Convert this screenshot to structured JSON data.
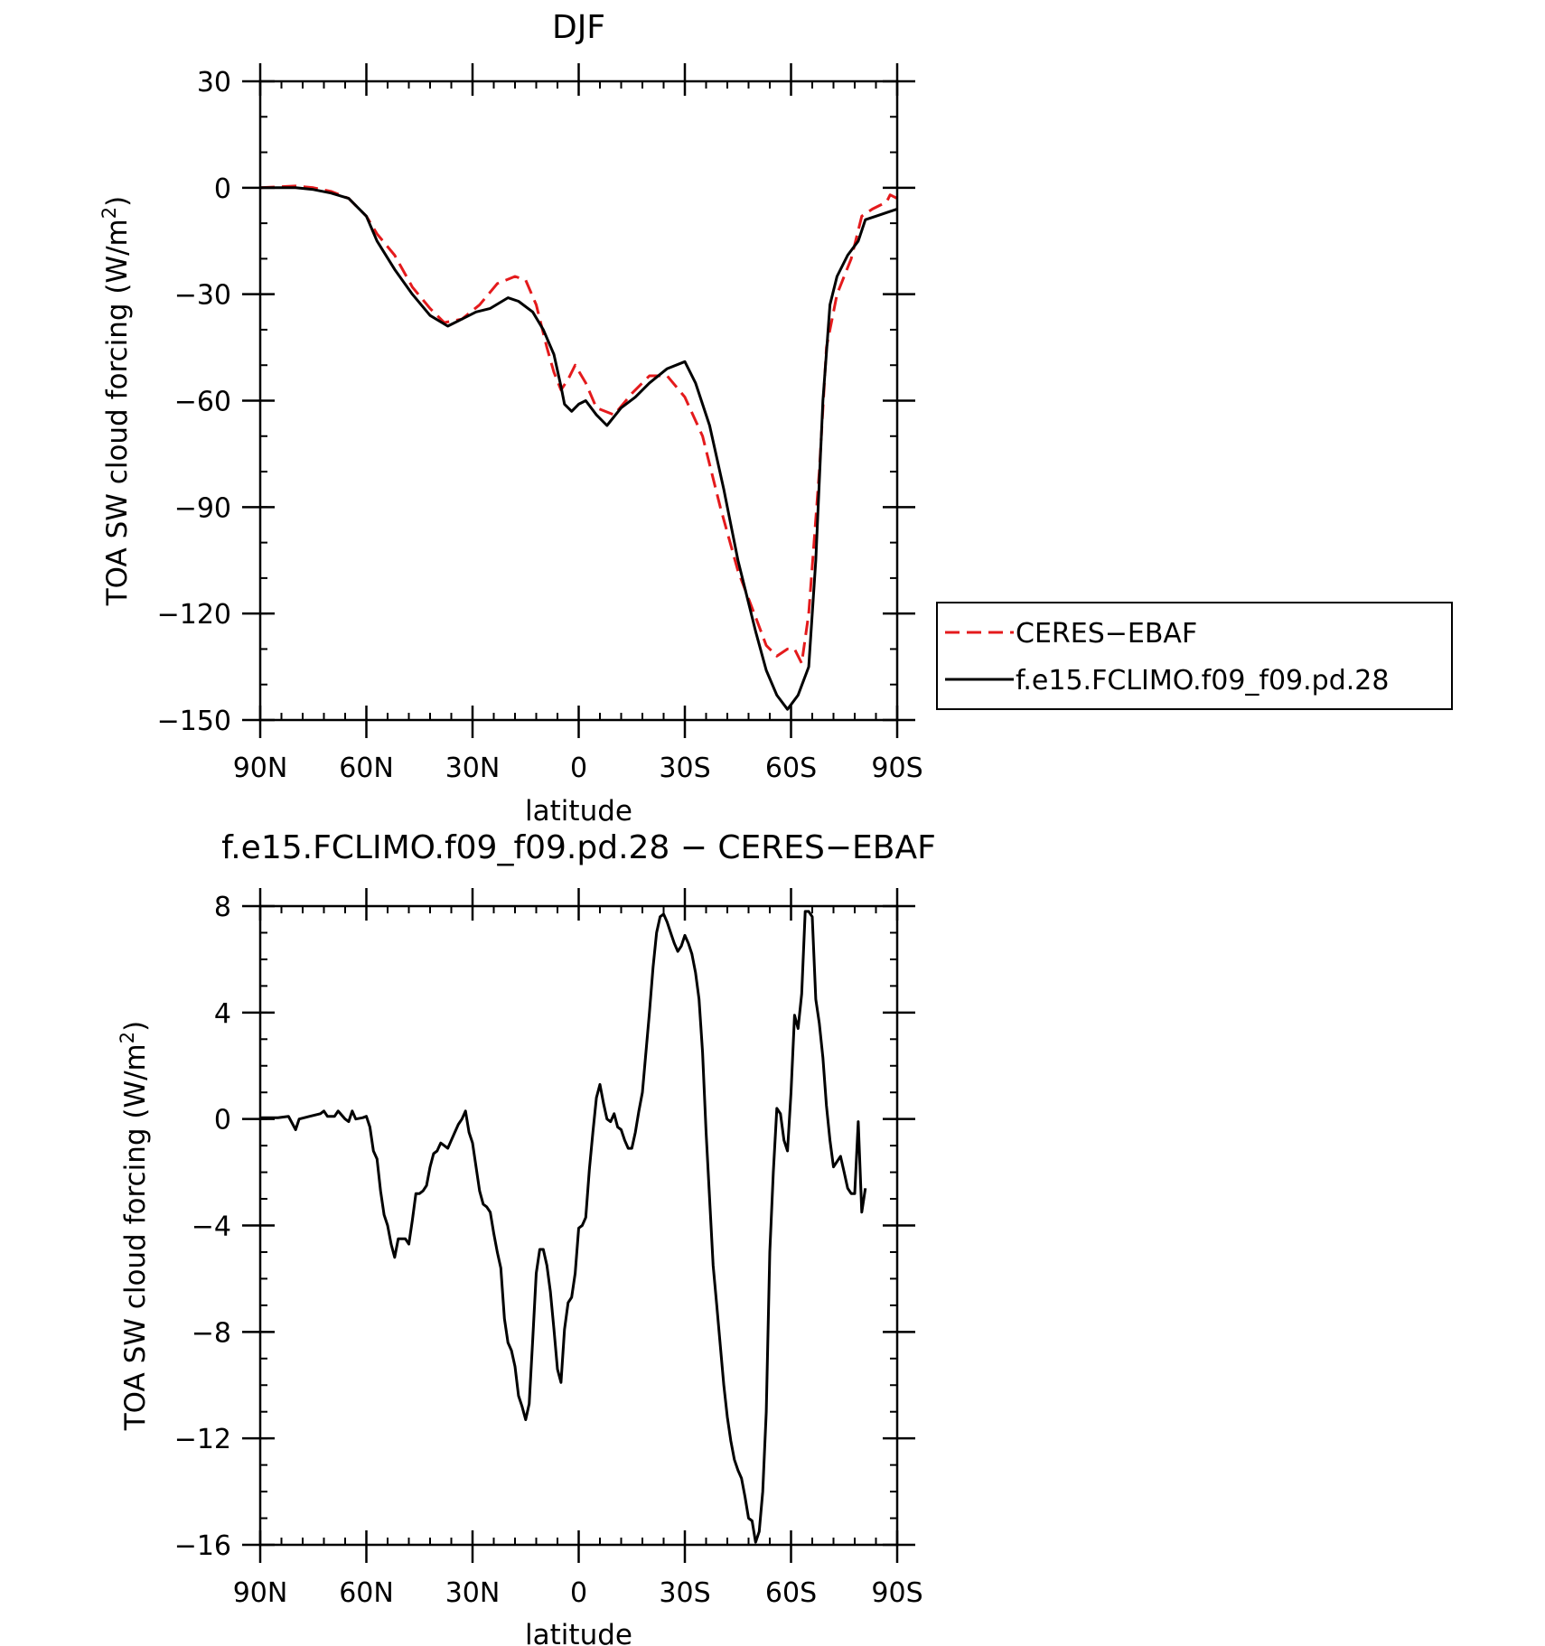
{
  "chart_data": [
    {
      "type": "line",
      "title": "DJF",
      "xlabel": "latitude",
      "ylabel": "TOA SW cloud forcing (W/m",
      "ylabel_sup": "2",
      "ylabel_end": ")",
      "xlim": [
        90,
        -90
      ],
      "ylim": [
        -150,
        30
      ],
      "xticks": [
        {
          "v": 90,
          "label": "90N"
        },
        {
          "v": 60,
          "label": "60N"
        },
        {
          "v": 30,
          "label": "30N"
        },
        {
          "v": 0,
          "label": "0"
        },
        {
          "v": -30,
          "label": "30S"
        },
        {
          "v": -60,
          "label": "60S"
        },
        {
          "v": -90,
          "label": "90S"
        }
      ],
      "yticks": [
        {
          "v": 30,
          "label": "30"
        },
        {
          "v": 0,
          "label": "0"
        },
        {
          "v": -30,
          "label": "−30"
        },
        {
          "v": -60,
          "label": "−60"
        },
        {
          "v": -90,
          "label": "−90"
        },
        {
          "v": -120,
          "label": "−120"
        },
        {
          "v": -150,
          "label": "−150"
        }
      ],
      "legend": {
        "position": "right"
      },
      "series": [
        {
          "name": "CERES−EBAF",
          "color": "#e41a1c",
          "dash": "dashed",
          "points": [
            [
              90,
              0
            ],
            [
              80,
              0.5
            ],
            [
              75,
              0
            ],
            [
              70,
              -1
            ],
            [
              65,
              -3
            ],
            [
              60,
              -8
            ],
            [
              57,
              -13
            ],
            [
              52,
              -19
            ],
            [
              47,
              -28
            ],
            [
              42,
              -34
            ],
            [
              38,
              -38
            ],
            [
              33,
              -37
            ],
            [
              28,
              -33
            ],
            [
              23,
              -27
            ],
            [
              18,
              -25
            ],
            [
              15,
              -26
            ],
            [
              12,
              -33
            ],
            [
              9,
              -45
            ],
            [
              7,
              -52
            ],
            [
              5,
              -57
            ],
            [
              3,
              -54
            ],
            [
              1,
              -50
            ],
            [
              -2,
              -55
            ],
            [
              -5,
              -62
            ],
            [
              -10,
              -64
            ],
            [
              -15,
              -58
            ],
            [
              -20,
              -53
            ],
            [
              -25,
              -53
            ],
            [
              -30,
              -59
            ],
            [
              -35,
              -70
            ],
            [
              -40,
              -90
            ],
            [
              -45,
              -108
            ],
            [
              -50,
              -121
            ],
            [
              -53,
              -129
            ],
            [
              -56,
              -132
            ],
            [
              -59,
              -130
            ],
            [
              -61,
              -130
            ],
            [
              -63,
              -134
            ],
            [
              -65,
              -120
            ],
            [
              -68,
              -80
            ],
            [
              -70,
              -45
            ],
            [
              -73,
              -30
            ],
            [
              -77,
              -20
            ],
            [
              -80,
              -8
            ],
            [
              -83,
              -6
            ],
            [
              -85,
              -5
            ],
            [
              -87,
              -4
            ],
            [
              -88,
              -2
            ],
            [
              -90,
              -3
            ]
          ]
        },
        {
          "name": "f.e15.FCLIMO.f09_f09.pd.28",
          "color": "#000000",
          "dash": "solid",
          "points": [
            [
              90,
              0
            ],
            [
              80,
              0
            ],
            [
              75,
              -0.5
            ],
            [
              70,
              -1.5
            ],
            [
              65,
              -3
            ],
            [
              60,
              -8
            ],
            [
              57,
              -15
            ],
            [
              52,
              -23
            ],
            [
              47,
              -30
            ],
            [
              42,
              -36
            ],
            [
              37,
              -39
            ],
            [
              33,
              -37
            ],
            [
              29,
              -35
            ],
            [
              25,
              -34
            ],
            [
              20,
              -31
            ],
            [
              17,
              -32
            ],
            [
              13,
              -35
            ],
            [
              10,
              -40
            ],
            [
              7,
              -47
            ],
            [
              5,
              -56
            ],
            [
              4,
              -61
            ],
            [
              2,
              -63
            ],
            [
              0,
              -61
            ],
            [
              -2,
              -60
            ],
            [
              -5,
              -64
            ],
            [
              -8,
              -67
            ],
            [
              -12,
              -62
            ],
            [
              -16,
              -59
            ],
            [
              -20,
              -55
            ],
            [
              -25,
              -51
            ],
            [
              -30,
              -49
            ],
            [
              -33,
              -55
            ],
            [
              -37,
              -67
            ],
            [
              -41,
              -85
            ],
            [
              -45,
              -105
            ],
            [
              -50,
              -125
            ],
            [
              -53,
              -136
            ],
            [
              -56,
              -143
            ],
            [
              -59,
              -147
            ],
            [
              -62,
              -143
            ],
            [
              -65,
              -135
            ],
            [
              -67,
              -105
            ],
            [
              -69,
              -60
            ],
            [
              -71,
              -33
            ],
            [
              -73,
              -25
            ],
            [
              -76,
              -19
            ],
            [
              -79,
              -15
            ],
            [
              -81,
              -9
            ],
            [
              -84,
              -8
            ],
            [
              -87,
              -7
            ],
            [
              -90,
              -6
            ]
          ]
        }
      ]
    },
    {
      "type": "line",
      "title": "f.e15.FCLIMO.f09_f09.pd.28 − CERES−EBAF",
      "xlabel": "latitude",
      "ylabel": "TOA SW cloud forcing (W/m",
      "ylabel_sup": "2",
      "ylabel_end": ")",
      "xlim": [
        90,
        -90
      ],
      "ylim": [
        -16,
        8
      ],
      "xticks": [
        {
          "v": 90,
          "label": "90N"
        },
        {
          "v": 60,
          "label": "60N"
        },
        {
          "v": 30,
          "label": "30N"
        },
        {
          "v": 0,
          "label": "0"
        },
        {
          "v": -30,
          "label": "30S"
        },
        {
          "v": -60,
          "label": "60S"
        },
        {
          "v": -90,
          "label": "90S"
        }
      ],
      "yticks": [
        {
          "v": 8,
          "label": "8"
        },
        {
          "v": 4,
          "label": "4"
        },
        {
          "v": 0,
          "label": "0"
        },
        {
          "v": -4,
          "label": "−4"
        },
        {
          "v": -8,
          "label": "−8"
        },
        {
          "v": -12,
          "label": "−12"
        },
        {
          "v": -16,
          "label": "−16"
        }
      ],
      "series": [
        {
          "color": "#000000",
          "dash": "solid",
          "points": [
            [
              90,
              0.05
            ],
            [
              85,
              0.05
            ],
            [
              82,
              0.1
            ],
            [
              80,
              -0.4
            ],
            [
              79,
              0
            ],
            [
              76,
              0.1
            ],
            [
              73,
              0.2
            ],
            [
              72,
              0.3
            ],
            [
              71,
              0.1
            ],
            [
              69,
              0.1
            ],
            [
              68,
              0.3
            ],
            [
              66,
              0
            ],
            [
              65,
              -0.1
            ],
            [
              64,
              0.3
            ],
            [
              63,
              0
            ],
            [
              61,
              0.05
            ],
            [
              60,
              0.1
            ],
            [
              59,
              -0.3
            ],
            [
              58,
              -1.2
            ],
            [
              57,
              -1.5
            ],
            [
              56,
              -2.7
            ],
            [
              55,
              -3.6
            ],
            [
              54,
              -4.0
            ],
            [
              53,
              -4.7
            ],
            [
              52,
              -5.2
            ],
            [
              51,
              -4.5
            ],
            [
              49,
              -4.5
            ],
            [
              48,
              -4.7
            ],
            [
              47,
              -3.8
            ],
            [
              46,
              -2.8
            ],
            [
              45,
              -2.8
            ],
            [
              44,
              -2.7
            ],
            [
              43,
              -2.5
            ],
            [
              42,
              -1.8
            ],
            [
              41,
              -1.3
            ],
            [
              40,
              -1.2
            ],
            [
              39,
              -0.9
            ],
            [
              38,
              -1.0
            ],
            [
              37,
              -1.1
            ],
            [
              36,
              -0.8
            ],
            [
              35,
              -0.5
            ],
            [
              34,
              -0.2
            ],
            [
              33,
              0
            ],
            [
              32,
              0.3
            ],
            [
              31,
              -0.5
            ],
            [
              30,
              -0.9
            ],
            [
              29,
              -1.8
            ],
            [
              28,
              -2.7
            ],
            [
              27,
              -3.2
            ],
            [
              26,
              -3.3
            ],
            [
              25,
              -3.5
            ],
            [
              24,
              -4.3
            ],
            [
              23,
              -5.0
            ],
            [
              22,
              -5.6
            ],
            [
              21,
              -7.5
            ],
            [
              20,
              -8.4
            ],
            [
              19,
              -8.7
            ],
            [
              18,
              -9.3
            ],
            [
              17,
              -10.4
            ],
            [
              16,
              -10.8
            ],
            [
              15,
              -11.3
            ],
            [
              14,
              -10.7
            ],
            [
              13,
              -8.3
            ],
            [
              12,
              -5.8
            ],
            [
              11,
              -4.9
            ],
            [
              10,
              -4.9
            ],
            [
              9,
              -5.5
            ],
            [
              8,
              -6.5
            ],
            [
              7,
              -7.9
            ],
            [
              6,
              -9.4
            ],
            [
              5,
              -9.9
            ],
            [
              4,
              -7.9
            ],
            [
              3,
              -6.9
            ],
            [
              2,
              -6.7
            ],
            [
              1,
              -5.8
            ],
            [
              0,
              -4.1
            ],
            [
              -1,
              -4.0
            ],
            [
              -2,
              -3.7
            ],
            [
              -3,
              -1.9
            ],
            [
              -4,
              -0.5
            ],
            [
              -5,
              0.8
            ],
            [
              -6,
              1.3
            ],
            [
              -7,
              0.6
            ],
            [
              -8,
              0.0
            ],
            [
              -9,
              -0.1
            ],
            [
              -10,
              0.2
            ],
            [
              -11,
              -0.3
            ],
            [
              -12,
              -0.4
            ],
            [
              -13,
              -0.8
            ],
            [
              -14,
              -1.1
            ],
            [
              -15,
              -1.1
            ],
            [
              -16,
              -0.5
            ],
            [
              -17,
              0.3
            ],
            [
              -18,
              1.0
            ],
            [
              -19,
              2.5
            ],
            [
              -20,
              4.0
            ],
            [
              -21,
              5.7
            ],
            [
              -22,
              7.0
            ],
            [
              -23,
              7.6
            ],
            [
              -24,
              7.7
            ],
            [
              -25,
              7.4
            ],
            [
              -26,
              7.0
            ],
            [
              -27,
              6.6
            ],
            [
              -28,
              6.3
            ],
            [
              -29,
              6.5
            ],
            [
              -30,
              6.9
            ],
            [
              -31,
              6.6
            ],
            [
              -32,
              6.2
            ],
            [
              -33,
              5.5
            ],
            [
              -34,
              4.5
            ],
            [
              -35,
              2.5
            ],
            [
              -36,
              -0.5
            ],
            [
              -37,
              -3.0
            ],
            [
              -38,
              -5.5
            ],
            [
              -39,
              -7.0
            ],
            [
              -40,
              -8.5
            ],
            [
              -41,
              -10.0
            ],
            [
              -42,
              -11.2
            ],
            [
              -43,
              -12.1
            ],
            [
              -44,
              -12.8
            ],
            [
              -45,
              -13.2
            ],
            [
              -46,
              -13.5
            ],
            [
              -47,
              -14.2
            ],
            [
              -48,
              -15.0
            ],
            [
              -49,
              -15.1
            ],
            [
              -50,
              -15.9
            ],
            [
              -51,
              -15.5
            ],
            [
              -52,
              -14.0
            ],
            [
              -53,
              -11.0
            ],
            [
              -54,
              -5.0
            ],
            [
              -55,
              -2.0
            ],
            [
              -56,
              0.4
            ],
            [
              -57,
              0.2
            ],
            [
              -58,
              -0.8
            ],
            [
              -59,
              -1.2
            ],
            [
              -60,
              1.0
            ],
            [
              -61,
              3.9
            ],
            [
              -62,
              3.4
            ],
            [
              -63,
              4.7
            ],
            [
              -64,
              7.8
            ],
            [
              -65,
              7.8
            ],
            [
              -66,
              7.6
            ],
            [
              -67,
              4.5
            ],
            [
              -68,
              3.6
            ],
            [
              -69,
              2.3
            ],
            [
              -70,
              0.5
            ],
            [
              -71,
              -0.8
            ],
            [
              -72,
              -1.8
            ],
            [
              -73,
              -1.6
            ],
            [
              -74,
              -1.4
            ],
            [
              -75,
              -2.0
            ],
            [
              -76,
              -2.6
            ],
            [
              -77,
              -2.8
            ],
            [
              -78,
              -2.8
            ],
            [
              -79,
              -0.1
            ],
            [
              -80,
              -3.5
            ],
            [
              -81,
              -2.6
            ]
          ]
        }
      ]
    }
  ]
}
